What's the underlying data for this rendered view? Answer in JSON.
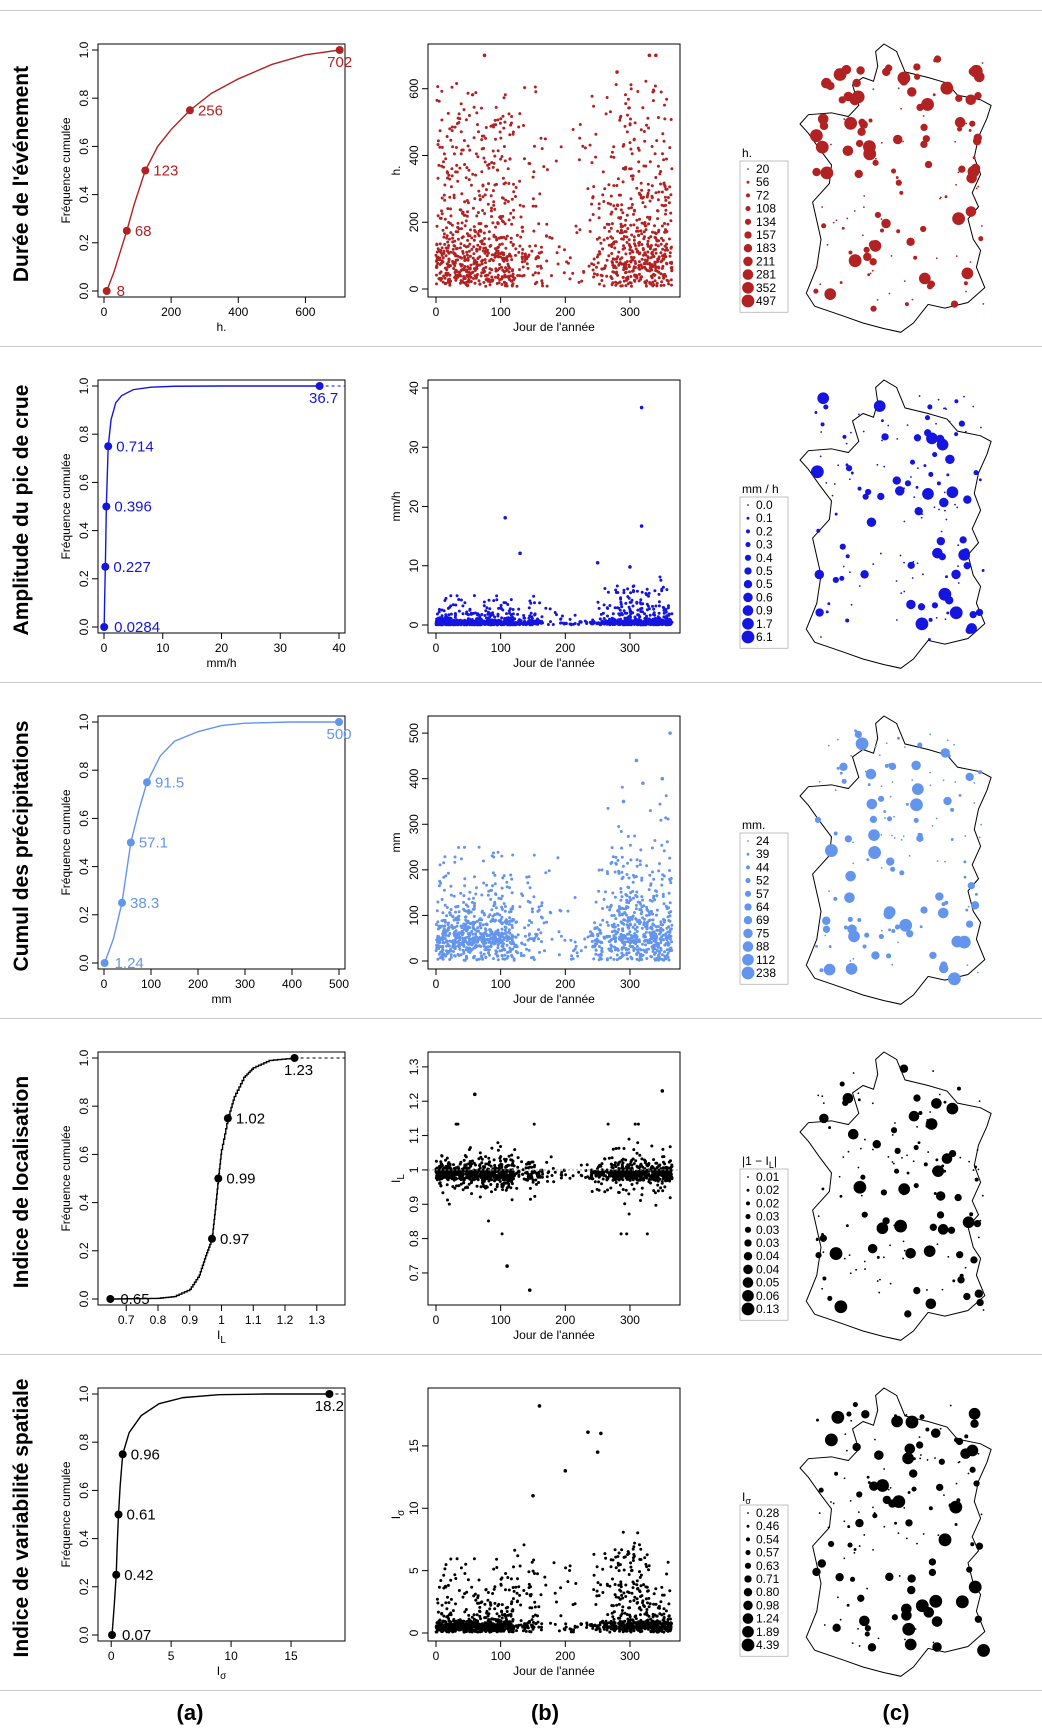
{
  "rows": [
    {
      "label": "Durée de l'événement",
      "color": "#b22222",
      "cdf": {
        "ylabel": "Fréquence cumulée",
        "xlabel": "h.",
        "xlim": [
          0,
          700
        ],
        "xticks": [
          0,
          200,
          400,
          600
        ],
        "ylim": [
          0,
          1
        ],
        "yticks": [
          0.0,
          0.2,
          0.4,
          0.6,
          0.8,
          1.0
        ],
        "curve": [
          [
            8,
            0
          ],
          [
            30,
            0.08
          ],
          [
            50,
            0.17
          ],
          [
            68,
            0.25
          ],
          [
            90,
            0.36
          ],
          [
            123,
            0.5
          ],
          [
            160,
            0.6
          ],
          [
            200,
            0.67
          ],
          [
            256,
            0.75
          ],
          [
            320,
            0.82
          ],
          [
            400,
            0.88
          ],
          [
            500,
            0.94
          ],
          [
            600,
            0.98
          ],
          [
            702,
            1.0
          ]
        ],
        "markers": [
          {
            "x": 8,
            "y": 0,
            "label": "8"
          },
          {
            "x": 68,
            "y": 0.25,
            "label": "68"
          },
          {
            "x": 123,
            "y": 0.5,
            "label": "123"
          },
          {
            "x": 256,
            "y": 0.75,
            "label": "256"
          },
          {
            "x": 702,
            "y": 1.0,
            "label": "702"
          }
        ],
        "step": false
      },
      "scatter": {
        "ylabel": "h.",
        "xlabel": "Jour de l'année",
        "xlim": [
          0,
          365
        ],
        "xticks": [
          0,
          100,
          200,
          300
        ],
        "ylim": [
          0,
          710
        ],
        "yticks": [
          0,
          200,
          400,
          600
        ],
        "outliers": [
          [
            330,
            700
          ],
          [
            340,
            700
          ],
          [
            75,
            700
          ],
          [
            280,
            650
          ]
        ]
      },
      "map": {
        "legend_title": "h.",
        "legend": [
          "20",
          "56",
          "72",
          "108",
          "134",
          "157",
          "183",
          "211",
          "281",
          "352",
          "497"
        ]
      }
    },
    {
      "label": "Amplitude du pic de crue",
      "color": "#1515e0",
      "cdf": {
        "ylabel": "Fréquence cumulée",
        "xlabel": "mm/h",
        "xlim": [
          0,
          40
        ],
        "xticks": [
          0,
          10,
          20,
          30,
          40
        ],
        "ylim": [
          0,
          1
        ],
        "yticks": [
          0.0,
          0.2,
          0.4,
          0.6,
          0.8,
          1.0
        ],
        "curve": [
          [
            0.0284,
            0
          ],
          [
            0.1,
            0.1
          ],
          [
            0.227,
            0.25
          ],
          [
            0.3,
            0.35
          ],
          [
            0.396,
            0.5
          ],
          [
            0.55,
            0.62
          ],
          [
            0.714,
            0.75
          ],
          [
            1.2,
            0.86
          ],
          [
            2,
            0.93
          ],
          [
            3,
            0.96
          ],
          [
            5,
            0.985
          ],
          [
            8,
            0.995
          ],
          [
            12,
            0.999
          ],
          [
            20,
            1.0
          ],
          [
            36.7,
            1.0
          ]
        ],
        "markers": [
          {
            "x": 0.0284,
            "y": 0,
            "label": "0.0284"
          },
          {
            "x": 0.227,
            "y": 0.25,
            "label": "0.227"
          },
          {
            "x": 0.396,
            "y": 0.5,
            "label": "0.396"
          },
          {
            "x": 0.714,
            "y": 0.75,
            "label": "0.714"
          },
          {
            "x": 36.7,
            "y": 1.0,
            "label": "36.7"
          }
        ],
        "step": false
      },
      "scatter": {
        "ylabel": "mm/h",
        "xlabel": "Jour de l'année",
        "xlim": [
          0,
          365
        ],
        "xticks": [
          0,
          100,
          200,
          300
        ],
        "ylim": [
          0,
          40
        ],
        "yticks": [
          0,
          10,
          20,
          30,
          40
        ],
        "outliers": [
          [
            318,
            36.7
          ],
          [
            107,
            18.1
          ],
          [
            318,
            16.7
          ],
          [
            130,
            12.1
          ],
          [
            250,
            10.5
          ],
          [
            300,
            9.8
          ]
        ]
      },
      "map": {
        "legend_title": "mm / h",
        "legend": [
          "0.0",
          "0.1",
          "0.2",
          "0.3",
          "0.4",
          "0.5",
          "0.5",
          "0.6",
          "0.9",
          "1.7",
          "6.1"
        ]
      }
    },
    {
      "label": "Cumul des précipitations",
      "color": "#6495ed",
      "cdf": {
        "ylabel": "Fréquence cumulée",
        "xlabel": "mm",
        "xlim": [
          0,
          500
        ],
        "xticks": [
          0,
          100,
          200,
          300,
          400,
          500
        ],
        "ylim": [
          0,
          1
        ],
        "yticks": [
          0.0,
          0.2,
          0.4,
          0.6,
          0.8,
          1.0
        ],
        "curve": [
          [
            1.24,
            0
          ],
          [
            20,
            0.1
          ],
          [
            38.3,
            0.25
          ],
          [
            48,
            0.38
          ],
          [
            57.1,
            0.5
          ],
          [
            75,
            0.64
          ],
          [
            91.5,
            0.75
          ],
          [
            120,
            0.86
          ],
          [
            150,
            0.92
          ],
          [
            200,
            0.96
          ],
          [
            250,
            0.985
          ],
          [
            300,
            0.995
          ],
          [
            400,
            1.0
          ],
          [
            500,
            1.0
          ]
        ],
        "markers": [
          {
            "x": 1.24,
            "y": 0,
            "label": "1.24"
          },
          {
            "x": 38.3,
            "y": 0.25,
            "label": "38.3"
          },
          {
            "x": 57.1,
            "y": 0.5,
            "label": "57.1"
          },
          {
            "x": 91.5,
            "y": 0.75,
            "label": "91.5"
          },
          {
            "x": 500,
            "y": 1.0,
            "label": "500"
          }
        ],
        "step": false
      },
      "scatter": {
        "ylabel": "mm",
        "xlabel": "Jour de l'année",
        "xlim": [
          0,
          365
        ],
        "xticks": [
          0,
          100,
          200,
          300
        ],
        "ylim": [
          0,
          520
        ],
        "yticks": [
          0,
          100,
          200,
          300,
          400,
          500
        ],
        "outliers": [
          [
            362,
            500
          ],
          [
            310,
            440
          ],
          [
            350,
            400
          ],
          [
            320,
            390
          ],
          [
            290,
            350
          ]
        ]
      },
      "map": {
        "legend_title": "mm.",
        "legend": [
          "24",
          "39",
          "44",
          "52",
          "57",
          "64",
          "69",
          "75",
          "88",
          "112",
          "238"
        ]
      }
    },
    {
      "label": "Indice de localisation",
      "color": "#000000",
      "cdf": {
        "ylabel": "Fréquence cumulée",
        "xlabel": "I",
        "xlabel_sub": "L",
        "xlim": [
          0.63,
          1.37
        ],
        "xticks": [
          0.7,
          0.8,
          0.9,
          1.0,
          1.1,
          1.2,
          1.3
        ],
        "ylim": [
          0,
          1
        ],
        "yticks": [
          0.0,
          0.2,
          0.4,
          0.6,
          0.8,
          1.0
        ],
        "curve": [
          [
            0.65,
            0
          ],
          [
            0.8,
            0.003
          ],
          [
            0.85,
            0.01
          ],
          [
            0.9,
            0.04
          ],
          [
            0.93,
            0.1
          ],
          [
            0.95,
            0.18
          ],
          [
            0.97,
            0.25
          ],
          [
            0.98,
            0.37
          ],
          [
            0.99,
            0.5
          ],
          [
            1.0,
            0.62
          ],
          [
            1.02,
            0.75
          ],
          [
            1.04,
            0.84
          ],
          [
            1.07,
            0.92
          ],
          [
            1.1,
            0.96
          ],
          [
            1.15,
            0.99
          ],
          [
            1.23,
            1.0
          ]
        ],
        "markers": [
          {
            "x": 0.65,
            "y": 0,
            "label": "0.65"
          },
          {
            "x": 0.97,
            "y": 0.25,
            "label": "0.97"
          },
          {
            "x": 0.99,
            "y": 0.5,
            "label": "0.99"
          },
          {
            "x": 1.02,
            "y": 0.75,
            "label": "1.02"
          },
          {
            "x": 1.23,
            "y": 1.0,
            "label": "1.23"
          }
        ],
        "step": true
      },
      "scatter": {
        "ylabel": "I",
        "ylabel_sub": "L",
        "xlabel": "Jour de l'année",
        "xlim": [
          0,
          365
        ],
        "xticks": [
          0,
          100,
          200,
          300
        ],
        "ylim": [
          0.63,
          1.32
        ],
        "yticks": [
          0.7,
          0.8,
          0.9,
          1.0,
          1.1,
          1.2,
          1.3
        ],
        "outliers": [
          [
            145,
            0.65
          ],
          [
            110,
            0.72
          ],
          [
            350,
            1.23
          ],
          [
            60,
            1.22
          ]
        ]
      },
      "map": {
        "legend_title": "|1 − I",
        "legend_title_sub": "L",
        "legend_title_end": "|",
        "legend": [
          "0.01",
          "0.02",
          "0.02",
          "0.03",
          "0.03",
          "0.03",
          "0.04",
          "0.04",
          "0.05",
          "0.06",
          "0.13"
        ]
      }
    },
    {
      "label": "Indice de variabilité spatiale",
      "color": "#000000",
      "cdf": {
        "ylabel": "Fréquence cumulée",
        "xlabel": "I",
        "xlabel_sub": "σ",
        "xlim": [
          -0.6,
          19
        ],
        "xticks": [
          0,
          5,
          10,
          15
        ],
        "ylim": [
          0,
          1
        ],
        "yticks": [
          0.0,
          0.2,
          0.4,
          0.6,
          0.8,
          1.0
        ],
        "curve": [
          [
            0.07,
            0
          ],
          [
            0.25,
            0.12
          ],
          [
            0.42,
            0.25
          ],
          [
            0.5,
            0.37
          ],
          [
            0.61,
            0.5
          ],
          [
            0.75,
            0.62
          ],
          [
            0.96,
            0.75
          ],
          [
            1.5,
            0.84
          ],
          [
            2.5,
            0.91
          ],
          [
            4,
            0.96
          ],
          [
            6,
            0.985
          ],
          [
            9,
            0.997
          ],
          [
            13,
            1.0
          ],
          [
            18.2,
            1.0
          ]
        ],
        "markers": [
          {
            "x": 0.07,
            "y": 0,
            "label": "0.07"
          },
          {
            "x": 0.42,
            "y": 0.25,
            "label": "0.42"
          },
          {
            "x": 0.61,
            "y": 0.5,
            "label": "0.61"
          },
          {
            "x": 0.96,
            "y": 0.75,
            "label": "0.96"
          },
          {
            "x": 18.2,
            "y": 1.0,
            "label": "18.2"
          }
        ],
        "step": false
      },
      "scatter": {
        "ylabel": "I",
        "ylabel_sub": "σ",
        "xlabel": "Jour de l'année",
        "xlim": [
          0,
          365
        ],
        "xticks": [
          0,
          100,
          200,
          300
        ],
        "ylim": [
          0,
          19
        ],
        "yticks": [
          0,
          5,
          10,
          15
        ],
        "outliers": [
          [
            160,
            18.2
          ],
          [
            235,
            16.1
          ],
          [
            255,
            16
          ],
          [
            250,
            14.5
          ],
          [
            200,
            13
          ],
          [
            150,
            11
          ]
        ]
      },
      "map": {
        "legend_title": "I",
        "legend_title_sub": "σ",
        "legend": [
          "0.28",
          "0.46",
          "0.54",
          "0.57",
          "0.63",
          "0.71",
          "0.80",
          "0.98",
          "1.24",
          "1.89",
          "4.39"
        ]
      }
    }
  ],
  "columns": [
    "(a)",
    "(b)",
    "(c)"
  ]
}
